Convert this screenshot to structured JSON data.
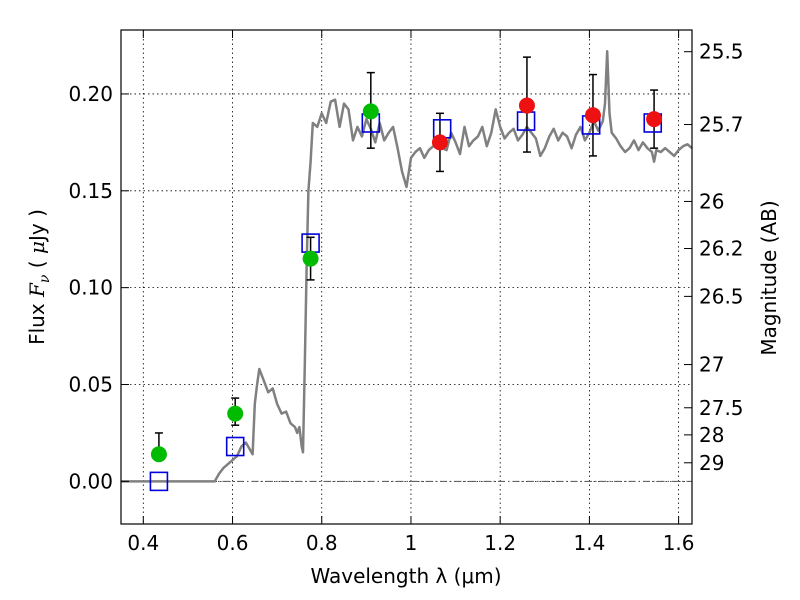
{
  "chart_data": {
    "type": "scatter",
    "xlabel": "Wavelength  λ (μm)",
    "ylabel": "Flux  F_ν  ( μJy )",
    "ylabel_right": "Magnitude (AB)",
    "xlim": [
      0.35,
      1.63
    ],
    "ylim": [
      -0.022,
      0.233
    ],
    "grid": true,
    "x_ticks": [
      0.4,
      0.6,
      0.8,
      1.0,
      1.2,
      1.4,
      1.6
    ],
    "x_tick_labels": [
      "0.4",
      "0.6",
      "0.8",
      "1",
      "1.2",
      "1.4",
      "1.6"
    ],
    "y_ticks": [
      0.0,
      0.05,
      0.1,
      0.15,
      0.2
    ],
    "y_tick_labels": [
      "0.00",
      "0.05",
      "0.10",
      "0.15",
      "0.20"
    ],
    "right_ticks": [
      {
        "flux": 0.2218,
        "label": "25.5"
      },
      {
        "flux": 0.1842,
        "label": "25.7"
      },
      {
        "flux": 0.1445,
        "label": "26"
      },
      {
        "flux": 0.1202,
        "label": "26.2"
      },
      {
        "flux": 0.0955,
        "label": "26.5"
      },
      {
        "flux": 0.0603,
        "label": "27"
      },
      {
        "flux": 0.038,
        "label": "27.5"
      },
      {
        "flux": 0.024,
        "label": "28"
      },
      {
        "flux": 0.0096,
        "label": "29"
      }
    ],
    "zero_line": {
      "y": 0.0,
      "style": "dash-dot",
      "color": "#555555"
    },
    "series": [
      {
        "kind": "line",
        "color": "#808080",
        "x": [
          0.35,
          0.56,
          0.57,
          0.58,
          0.59,
          0.6,
          0.61,
          0.62,
          0.63,
          0.64,
          0.645,
          0.65,
          0.655,
          0.66,
          0.67,
          0.68,
          0.69,
          0.7,
          0.71,
          0.72,
          0.73,
          0.74,
          0.745,
          0.75,
          0.755,
          0.758,
          0.762,
          0.766,
          0.77,
          0.775,
          0.78,
          0.79,
          0.8,
          0.81,
          0.82,
          0.83,
          0.84,
          0.85,
          0.86,
          0.87,
          0.88,
          0.89,
          0.9,
          0.91,
          0.92,
          0.93,
          0.94,
          0.95,
          0.96,
          0.97,
          0.98,
          0.99,
          1.0,
          1.01,
          1.02,
          1.03,
          1.04,
          1.05,
          1.06,
          1.07,
          1.08,
          1.09,
          1.1,
          1.11,
          1.12,
          1.13,
          1.14,
          1.15,
          1.16,
          1.17,
          1.18,
          1.19,
          1.2,
          1.21,
          1.22,
          1.23,
          1.24,
          1.25,
          1.26,
          1.27,
          1.28,
          1.29,
          1.3,
          1.31,
          1.32,
          1.33,
          1.34,
          1.35,
          1.36,
          1.37,
          1.38,
          1.39,
          1.4,
          1.41,
          1.42,
          1.43,
          1.435,
          1.44,
          1.445,
          1.45,
          1.46,
          1.47,
          1.48,
          1.49,
          1.5,
          1.51,
          1.52,
          1.53,
          1.54,
          1.545,
          1.55,
          1.56,
          1.57,
          1.58,
          1.59,
          1.6,
          1.61,
          1.62,
          1.63
        ],
        "y": [
          0.0,
          0.0,
          0.004,
          0.007,
          0.009,
          0.011,
          0.013,
          0.018,
          0.02,
          0.016,
          0.014,
          0.04,
          0.05,
          0.058,
          0.052,
          0.046,
          0.048,
          0.04,
          0.035,
          0.036,
          0.03,
          0.028,
          0.025,
          0.028,
          0.018,
          0.015,
          0.06,
          0.11,
          0.15,
          0.165,
          0.185,
          0.183,
          0.19,
          0.185,
          0.196,
          0.197,
          0.183,
          0.195,
          0.192,
          0.176,
          0.183,
          0.178,
          0.187,
          0.182,
          0.175,
          0.185,
          0.176,
          0.18,
          0.183,
          0.172,
          0.16,
          0.152,
          0.167,
          0.17,
          0.172,
          0.167,
          0.171,
          0.173,
          0.177,
          0.172,
          0.171,
          0.18,
          0.175,
          0.169,
          0.183,
          0.173,
          0.176,
          0.178,
          0.183,
          0.173,
          0.18,
          0.192,
          0.183,
          0.177,
          0.18,
          0.182,
          0.176,
          0.179,
          0.183,
          0.18,
          0.177,
          0.168,
          0.172,
          0.178,
          0.182,
          0.176,
          0.18,
          0.178,
          0.172,
          0.179,
          0.183,
          0.176,
          0.18,
          0.186,
          0.181,
          0.186,
          0.195,
          0.222,
          0.19,
          0.18,
          0.177,
          0.173,
          0.17,
          0.172,
          0.176,
          0.171,
          0.175,
          0.172,
          0.17,
          0.165,
          0.171,
          0.17,
          0.172,
          0.17,
          0.168,
          0.171,
          0.173,
          0.174,
          0.172
        ]
      },
      {
        "kind": "points-with-errorbars",
        "color": "#00bb00",
        "x": [
          0.435,
          0.606,
          0.775,
          0.91
        ],
        "y": [
          0.014,
          0.035,
          0.115,
          0.191
        ],
        "yerr_low": [
          0.014,
          0.029,
          0.104,
          0.172
        ],
        "yerr_high": [
          0.025,
          0.043,
          0.126,
          0.211
        ]
      },
      {
        "kind": "points-with-errorbars",
        "color": "#ee1111",
        "x": [
          1.065,
          1.26,
          1.408,
          1.545
        ],
        "y": [
          0.175,
          0.194,
          0.189,
          0.187
        ],
        "yerr_low": [
          0.16,
          0.17,
          0.168,
          0.172
        ],
        "yerr_high": [
          0.19,
          0.219,
          0.21,
          0.202
        ]
      },
      {
        "kind": "open-squares",
        "color": "#0000dd",
        "x": [
          0.435,
          0.606,
          0.775,
          0.91,
          1.07,
          1.258,
          1.404,
          1.542
        ],
        "y": [
          0.0,
          0.018,
          0.123,
          0.185,
          0.182,
          0.186,
          0.184,
          0.185
        ]
      }
    ]
  }
}
